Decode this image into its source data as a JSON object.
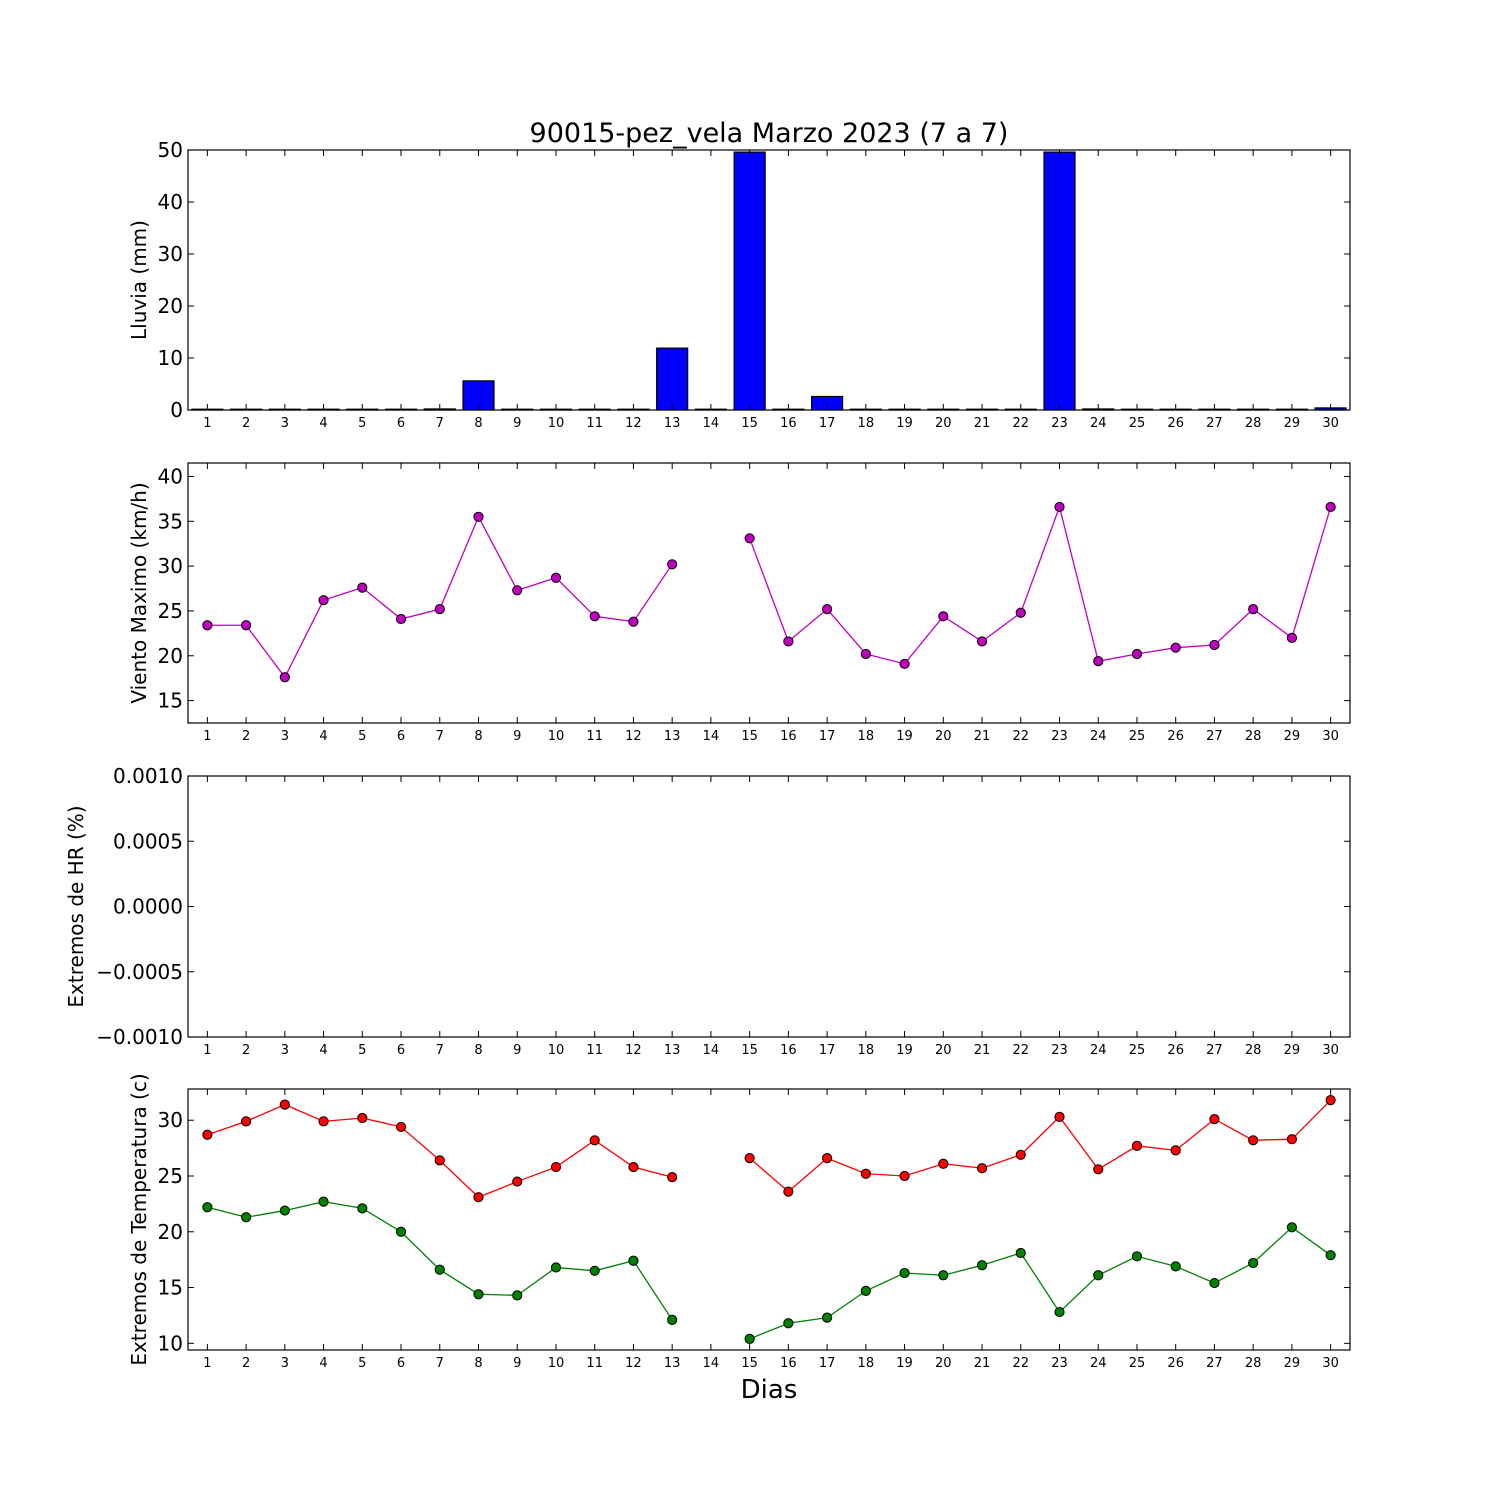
{
  "title": "90015-pez_vela Marzo 2023  (7 a 7)",
  "xlabel": "Dias",
  "days": [
    1,
    2,
    3,
    4,
    5,
    6,
    7,
    8,
    9,
    10,
    11,
    12,
    13,
    14,
    15,
    16,
    17,
    18,
    19,
    20,
    21,
    22,
    23,
    24,
    25,
    26,
    27,
    28,
    29,
    30
  ],
  "colors": {
    "rain": "#0000ff",
    "wind": "#bf00bf",
    "tmax": "#ff0000",
    "tmin": "#008000"
  },
  "chart_data": [
    {
      "type": "bar",
      "ylabel": "Lluvia (mm)",
      "ylim": [
        0,
        50
      ],
      "yticks": [
        "0",
        "10",
        "20",
        "30",
        "40",
        "50"
      ],
      "categories": [
        1,
        2,
        3,
        4,
        5,
        6,
        7,
        8,
        9,
        10,
        11,
        12,
        13,
        14,
        15,
        16,
        17,
        18,
        19,
        20,
        21,
        22,
        23,
        24,
        25,
        26,
        27,
        28,
        29,
        30
      ],
      "values": [
        0,
        0,
        0,
        0,
        0,
        0,
        0.2,
        5.6,
        0,
        0,
        0,
        0,
        11.9,
        0,
        49.6,
        0,
        2.6,
        0,
        0,
        0,
        0,
        0,
        49.6,
        0.2,
        0,
        0,
        0,
        0,
        0,
        0.4
      ]
    },
    {
      "type": "line",
      "ylabel": "Viento Maximo (km/h)",
      "ylim": [
        12.5,
        41.5
      ],
      "yticks": [
        "15",
        "20",
        "25",
        "30",
        "35",
        "40"
      ],
      "x": [
        1,
        2,
        3,
        4,
        5,
        6,
        7,
        8,
        9,
        10,
        11,
        12,
        13,
        14,
        15,
        16,
        17,
        18,
        19,
        20,
        21,
        22,
        23,
        24,
        25,
        26,
        27,
        28,
        29,
        30
      ],
      "series": [
        {
          "values": [
            23.4,
            23.4,
            17.6,
            26.2,
            27.6,
            24.1,
            25.2,
            35.5,
            27.3,
            28.7,
            24.4,
            23.8,
            30.2,
            null,
            33.1,
            21.6,
            25.2,
            20.2,
            19.1,
            24.4,
            21.6,
            24.8,
            36.6,
            19.4,
            20.2,
            20.9,
            21.2,
            25.2,
            22.0,
            36.6
          ]
        }
      ]
    },
    {
      "type": "line",
      "ylabel": "Extremos de HR (%)",
      "ylim": [
        -0.001,
        0.001
      ],
      "yticks": [
        "−0.0010",
        "−0.0005",
        "0.0000",
        "0.0005",
        "0.0010"
      ],
      "x": [
        1,
        2,
        3,
        4,
        5,
        6,
        7,
        8,
        9,
        10,
        11,
        12,
        13,
        14,
        15,
        16,
        17,
        18,
        19,
        20,
        21,
        22,
        23,
        24,
        25,
        26,
        27,
        28,
        29,
        30
      ],
      "series": []
    },
    {
      "type": "line",
      "ylabel": "Extremos de Temperatura (c)",
      "ylim": [
        9.4,
        32.8
      ],
      "yticks": [
        "10",
        "15",
        "20",
        "25",
        "30"
      ],
      "x": [
        1,
        2,
        3,
        4,
        5,
        6,
        7,
        8,
        9,
        10,
        11,
        12,
        13,
        14,
        15,
        16,
        17,
        18,
        19,
        20,
        21,
        22,
        23,
        24,
        25,
        26,
        27,
        28,
        29,
        30
      ],
      "series": [
        {
          "values": [
            28.7,
            29.9,
            31.4,
            29.9,
            30.2,
            29.4,
            26.4,
            23.1,
            24.5,
            25.8,
            28.2,
            25.8,
            24.9,
            null,
            26.6,
            23.6,
            26.6,
            25.2,
            25.0,
            26.1,
            25.7,
            26.9,
            30.3,
            25.6,
            27.7,
            27.3,
            30.1,
            28.2,
            28.3,
            31.8
          ]
        },
        {
          "values": [
            22.2,
            21.3,
            21.9,
            22.7,
            22.1,
            20.0,
            16.6,
            14.4,
            14.3,
            16.8,
            16.5,
            17.4,
            12.1,
            null,
            10.4,
            11.8,
            12.3,
            14.7,
            16.3,
            16.1,
            17.0,
            18.1,
            12.8,
            16.1,
            17.8,
            16.9,
            15.4,
            17.2,
            20.4,
            17.9
          ]
        }
      ]
    }
  ]
}
